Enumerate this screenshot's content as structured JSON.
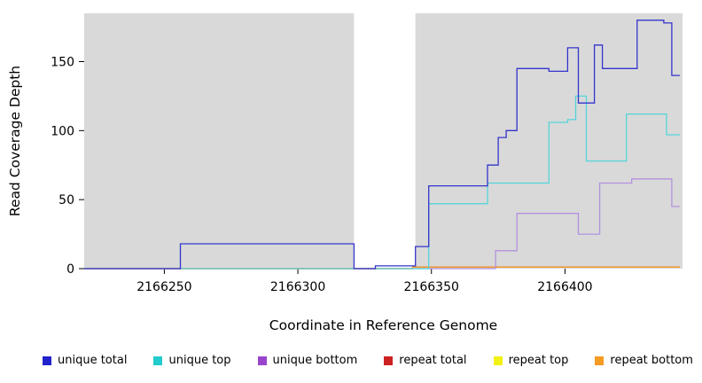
{
  "chart_data": {
    "type": "line",
    "title": "",
    "xlabel": "Coordinate in Reference Genome",
    "ylabel": "Read Coverage Depth",
    "xlim": [
      2166220,
      2166444
    ],
    "ylim": [
      0,
      185
    ],
    "xticks": [
      2166250,
      2166300,
      2166350,
      2166400
    ],
    "yticks": [
      0,
      50,
      100,
      150
    ],
    "plot_bg": "#d9d9d9",
    "gap_region": {
      "x0": 2166321,
      "x1": 2166344,
      "color": "#ffffff"
    },
    "grid": false,
    "legend_position": "bottom",
    "series": [
      {
        "name": "repeat top",
        "color": "#f2f215",
        "points": [
          [
            2166220,
            0
          ],
          [
            2166343,
            0
          ],
          [
            2166343,
            1
          ],
          [
            2166443,
            1
          ]
        ]
      },
      {
        "name": "repeat total",
        "color": "#c62828",
        "points": [
          [
            2166220,
            0
          ],
          [
            2166343,
            0
          ],
          [
            2166343,
            1
          ],
          [
            2166443,
            1
          ]
        ]
      },
      {
        "name": "repeat bottom",
        "color": "#f59a23",
        "points": [
          [
            2166220,
            0
          ],
          [
            2166343,
            0
          ],
          [
            2166343,
            1
          ],
          [
            2166443,
            1
          ]
        ]
      },
      {
        "name": "unique bottom",
        "color": "#b292dd",
        "points": [
          [
            2166220,
            0
          ],
          [
            2166374,
            0
          ],
          [
            2166374,
            13
          ],
          [
            2166382,
            13
          ],
          [
            2166382,
            40
          ],
          [
            2166405,
            40
          ],
          [
            2166405,
            25
          ],
          [
            2166413,
            25
          ],
          [
            2166413,
            62
          ],
          [
            2166425,
            62
          ],
          [
            2166425,
            65
          ],
          [
            2166440,
            65
          ],
          [
            2166440,
            45
          ],
          [
            2166443,
            45
          ]
        ]
      },
      {
        "name": "unique top",
        "color": "#55d4da",
        "points": [
          [
            2166220,
            0
          ],
          [
            2166349,
            0
          ],
          [
            2166349,
            47
          ],
          [
            2166371,
            47
          ],
          [
            2166371,
            62
          ],
          [
            2166394,
            62
          ],
          [
            2166394,
            106
          ],
          [
            2166401,
            106
          ],
          [
            2166401,
            108
          ],
          [
            2166404,
            108
          ],
          [
            2166404,
            125
          ],
          [
            2166408,
            125
          ],
          [
            2166408,
            78
          ],
          [
            2166423,
            78
          ],
          [
            2166423,
            112
          ],
          [
            2166438,
            112
          ],
          [
            2166438,
            97
          ],
          [
            2166443,
            97
          ]
        ]
      },
      {
        "name": "unique total",
        "color": "#3434cd",
        "points": [
          [
            2166220,
            0
          ],
          [
            2166256,
            0
          ],
          [
            2166256,
            18
          ],
          [
            2166321,
            18
          ],
          [
            2166321,
            0
          ],
          [
            2166329,
            0
          ],
          [
            2166329,
            2
          ],
          [
            2166344,
            2
          ],
          [
            2166344,
            16
          ],
          [
            2166349,
            16
          ],
          [
            2166349,
            60
          ],
          [
            2166371,
            60
          ],
          [
            2166371,
            75
          ],
          [
            2166375,
            75
          ],
          [
            2166375,
            95
          ],
          [
            2166378,
            95
          ],
          [
            2166378,
            100
          ],
          [
            2166382,
            100
          ],
          [
            2166382,
            145
          ],
          [
            2166394,
            145
          ],
          [
            2166394,
            143
          ],
          [
            2166401,
            143
          ],
          [
            2166401,
            160
          ],
          [
            2166405,
            160
          ],
          [
            2166405,
            120
          ],
          [
            2166411,
            120
          ],
          [
            2166411,
            162
          ],
          [
            2166414,
            162
          ],
          [
            2166414,
            145
          ],
          [
            2166427,
            145
          ],
          [
            2166427,
            180
          ],
          [
            2166437,
            180
          ],
          [
            2166437,
            178
          ],
          [
            2166440,
            178
          ],
          [
            2166440,
            140
          ],
          [
            2166443,
            140
          ]
        ]
      }
    ],
    "legend": [
      {
        "label": "unique total",
        "color": "#2222cc"
      },
      {
        "label": "unique top",
        "color": "#22cccc"
      },
      {
        "label": "unique bottom",
        "color": "#9944cc"
      },
      {
        "label": "repeat total",
        "color": "#cc2222"
      },
      {
        "label": "repeat top",
        "color": "#f2f215"
      },
      {
        "label": "repeat bottom",
        "color": "#f59a23"
      }
    ]
  }
}
